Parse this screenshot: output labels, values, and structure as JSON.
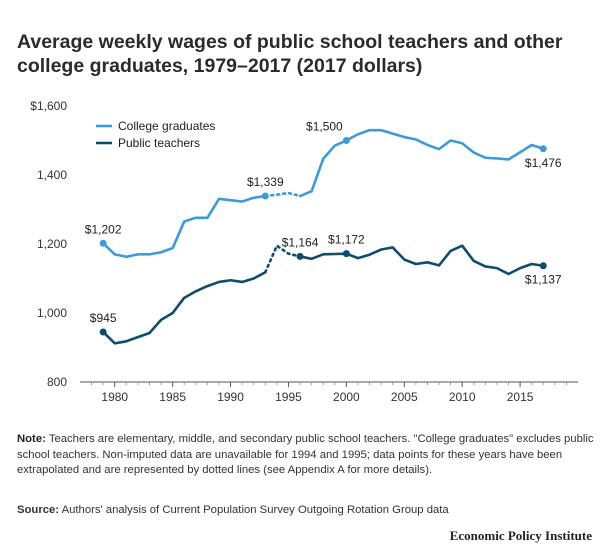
{
  "header": {
    "title": "Average weekly wages of public school teachers and other college graduates, 1979–2017 (2017 dollars)"
  },
  "footer": {
    "note_label": "Note:",
    "note_text": "Teachers are elementary, middle, and secondary public school teachers. \"College graduates\" excludes public school teachers. Non-imputed data are unavailable for 1994 and 1995; data points for these years have been extrapolated and are represented by dotted lines (see Appendix A for more details).",
    "source_label": "Source:",
    "source_text": "Authors' analysis of Current Population Survey Outgoing Rotation Group data",
    "org": "Economic Policy Institute"
  },
  "chart_data": {
    "type": "line",
    "xlim": [
      1977,
      2020
    ],
    "ylim": [
      800,
      1600
    ],
    "x_ticks": [
      1980,
      1985,
      1990,
      1995,
      2000,
      2005,
      2010,
      2015
    ],
    "y_ticks": [
      800,
      1000,
      1200,
      1400,
      1600
    ],
    "y_tick_labels": [
      "800",
      "1,000",
      "1,200",
      "1,400",
      "$1,600"
    ],
    "grid": false,
    "legend_position": "top-left",
    "colors": {
      "college": "#3d9bd6",
      "teachers": "#0f4c6e",
      "axis": "#555555"
    },
    "series": [
      {
        "name": "College graduates",
        "key": "college",
        "x": [
          1979,
          1980,
          1981,
          1982,
          1983,
          1984,
          1985,
          1986,
          1987,
          1988,
          1989,
          1990,
          1991,
          1992,
          1993,
          1994,
          1995,
          1996,
          1997,
          1998,
          1999,
          2000,
          2001,
          2002,
          2003,
          2004,
          2005,
          2006,
          2007,
          2008,
          2009,
          2010,
          2011,
          2012,
          2013,
          2014,
          2015,
          2016,
          2017
        ],
        "values": [
          1202,
          1170,
          1163,
          1170,
          1170,
          1176,
          1188,
          1265,
          1276,
          1276,
          1331,
          1327,
          1323,
          1334,
          1339,
          1343,
          1348,
          1339,
          1353,
          1447,
          1485,
          1500,
          1518,
          1530,
          1530,
          1520,
          1510,
          1503,
          1487,
          1475,
          1500,
          1492,
          1465,
          1450,
          1448,
          1445,
          1466,
          1487,
          1476
        ],
        "dotted_x": [
          1993,
          1994,
          1995,
          1996
        ]
      },
      {
        "name": "Public teachers",
        "key": "teachers",
        "x": [
          1979,
          1980,
          1981,
          1982,
          1983,
          1984,
          1985,
          1986,
          1987,
          1988,
          1989,
          1990,
          1991,
          1992,
          1993,
          1994,
          1995,
          1996,
          1997,
          1998,
          1999,
          2000,
          2001,
          2002,
          2003,
          2004,
          2005,
          2006,
          2007,
          2008,
          2009,
          2010,
          2011,
          2012,
          2013,
          2014,
          2015,
          2016,
          2017
        ],
        "values": [
          945,
          912,
          918,
          930,
          942,
          980,
          1000,
          1044,
          1063,
          1078,
          1090,
          1095,
          1090,
          1100,
          1118,
          1195,
          1172,
          1164,
          1157,
          1170,
          1171,
          1172,
          1159,
          1169,
          1184,
          1190,
          1155,
          1142,
          1147,
          1138,
          1180,
          1195,
          1151,
          1135,
          1130,
          1113,
          1130,
          1142,
          1137
        ],
        "dotted_x": [
          1993,
          1994,
          1995,
          1996
        ]
      }
    ],
    "annotations": [
      {
        "series": "college",
        "x": 1979,
        "label": "$1,202",
        "pos": "above"
      },
      {
        "series": "college",
        "x": 1993,
        "label": "$1,339",
        "pos": "above"
      },
      {
        "series": "college",
        "x": 2000,
        "label": "$1,500",
        "pos": "above-left"
      },
      {
        "series": "college",
        "x": 2017,
        "label": "$1,476",
        "pos": "below"
      },
      {
        "series": "teachers",
        "x": 1979,
        "label": "$945",
        "pos": "above"
      },
      {
        "series": "teachers",
        "x": 1996,
        "label": "$1,164",
        "pos": "above"
      },
      {
        "series": "teachers",
        "x": 2000,
        "label": "$1,172",
        "pos": "above"
      },
      {
        "series": "teachers",
        "x": 2017,
        "label": "$1,137",
        "pos": "below"
      }
    ]
  }
}
